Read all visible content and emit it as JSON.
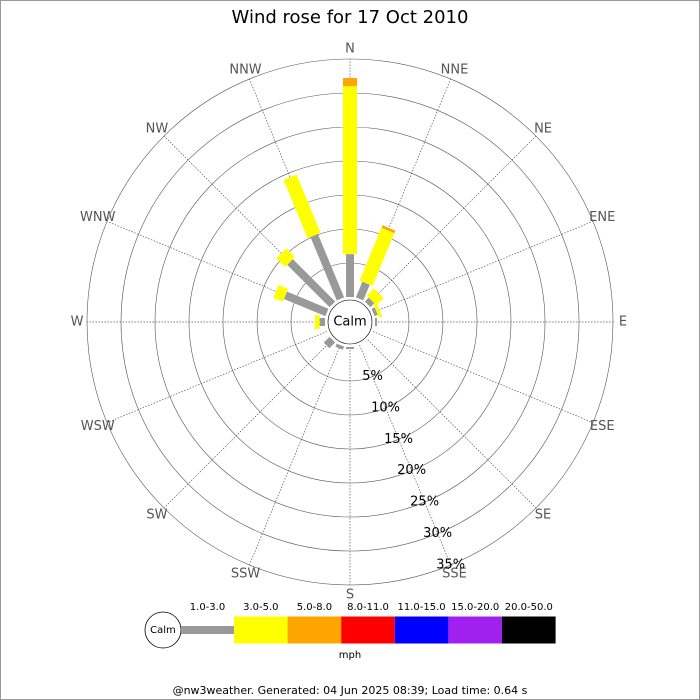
{
  "chart_data": {
    "type": "windrose",
    "title": "Wind rose for 17 Oct 2010",
    "categories": [
      "N",
      "NNE",
      "NE",
      "ENE",
      "E",
      "ESE",
      "SE",
      "SSE",
      "S",
      "SSW",
      "SW",
      "WSW",
      "W",
      "WNW",
      "NW",
      "NNW"
    ],
    "calm_label": "Calm",
    "unit_label": "mph",
    "footer": "@nw3weather. Generated: 04 Jun 2025 08:39; Load time: 0.64 s",
    "rlim": [
      0,
      35
    ],
    "rticks": [
      {
        "value": 5,
        "label": "5%"
      },
      {
        "value": 10,
        "label": "10%"
      },
      {
        "value": 15,
        "label": "15%"
      },
      {
        "value": 20,
        "label": "20%"
      },
      {
        "value": 25,
        "label": "25%"
      },
      {
        "value": 30,
        "label": "30%"
      },
      {
        "value": 35,
        "label": "35%"
      }
    ],
    "series": [
      {
        "name": "1.0-3.0",
        "color": "#999999",
        "values": [
          6.3,
          2.5,
          0.8,
          0.5,
          0.3,
          0,
          0,
          0,
          0.3,
          0.5,
          1.2,
          0,
          0.8,
          6.6,
          8.8,
          10.1
        ]
      },
      {
        "name": "3.0-5.0",
        "color": "#ffff00",
        "values": [
          24.7,
          8.4,
          1.5,
          0.5,
          0,
          0,
          0,
          0,
          0,
          0,
          0,
          0,
          0.7,
          1.5,
          1.8,
          9.3
        ]
      },
      {
        "name": "5.0-8.0",
        "color": "#ffa500",
        "values": [
          1.2,
          0.4,
          0,
          0,
          0,
          0,
          0,
          0,
          0,
          0,
          0,
          0,
          0,
          0,
          0,
          0
        ]
      },
      {
        "name": "8.0-11.0",
        "color": "#ff0000",
        "values": [
          0,
          0,
          0,
          0,
          0,
          0,
          0,
          0,
          0,
          0,
          0,
          0,
          0,
          0,
          0,
          0
        ]
      },
      {
        "name": "11.0-15.0",
        "color": "#0000ff",
        "values": [
          0,
          0,
          0,
          0,
          0,
          0,
          0,
          0,
          0,
          0,
          0,
          0,
          0,
          0,
          0,
          0
        ]
      },
      {
        "name": "15.0-20.0",
        "color": "#a020f0",
        "values": [
          0,
          0,
          0,
          0,
          0,
          0,
          0,
          0,
          0,
          0,
          0,
          0,
          0,
          0,
          0,
          0
        ]
      },
      {
        "name": "20.0-50.0",
        "color": "#000000",
        "values": [
          0,
          0,
          0,
          0,
          0,
          0,
          0,
          0,
          0,
          0,
          0,
          0,
          0,
          0,
          0,
          0
        ]
      }
    ]
  }
}
